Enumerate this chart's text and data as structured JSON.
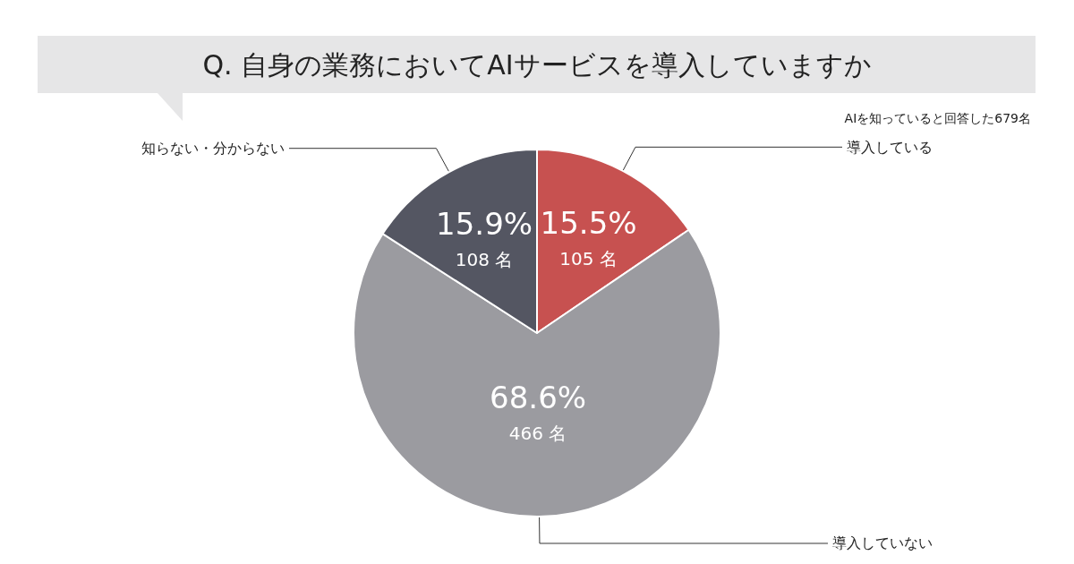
{
  "chart_data": {
    "type": "pie",
    "title": "Q. 自身の業務においてAIサービスを導入していますか",
    "subtitle": "AIを知っていると回答した679名",
    "categories": [
      "導入している",
      "導入していない",
      "知らない・分からない"
    ],
    "values": [
      15.5,
      68.6,
      15.9
    ],
    "colors": [
      "#c75150",
      "#9b9ba0",
      "#545662"
    ],
    "value_labels": [
      "15.5%\n105 名",
      "68.6%\n466 名",
      "15.9%\n108 名"
    ],
    "legend": false
  }
}
